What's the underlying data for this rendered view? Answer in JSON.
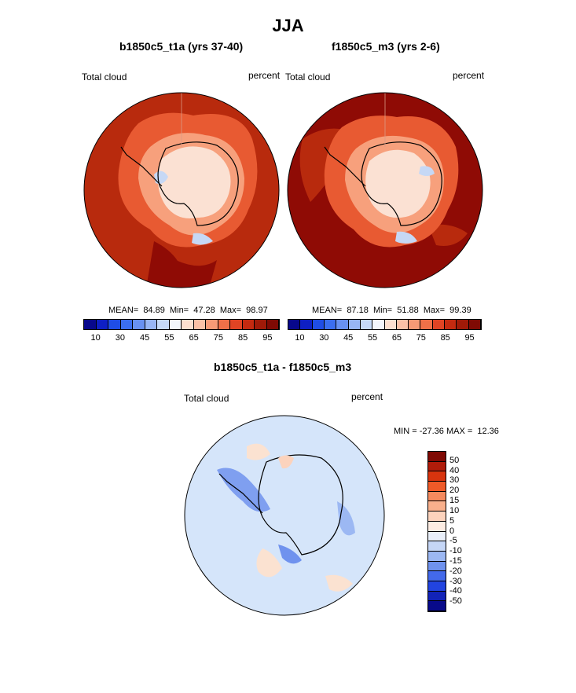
{
  "page": {
    "title": "JJA"
  },
  "panels": [
    {
      "subtitle": "b1850c5_t1a (yrs 37-40)",
      "left_label": "Total cloud",
      "right_label": "percent",
      "stats": "MEAN=  84.89  Min=  47.28  Max=  98.97"
    },
    {
      "subtitle": "f1850c5_m3 (yrs 2-6)",
      "left_label": "Total cloud",
      "right_label": "percent",
      "stats": "MEAN=  87.18  Min=  51.88  Max=  99.39"
    }
  ],
  "colorbar": {
    "colors": [
      "#08088c",
      "#0e1fc4",
      "#1f4de6",
      "#3b6ef0",
      "#6891f2",
      "#98b6f5",
      "#c6daf8",
      "#f3f6fb",
      "#fde0cf",
      "#fbc1a6",
      "#f79a76",
      "#f07048",
      "#e04424",
      "#c42a10",
      "#a01a08",
      "#7f0a04"
    ],
    "tick_labels": [
      "10",
      "30",
      "45",
      "55",
      "65",
      "75",
      "85",
      "95"
    ]
  },
  "diff": {
    "title": "b1850c5_t1a - f1850c5_m3",
    "left_label": "Total cloud",
    "right_label": "percent",
    "stats": "MIN = -27.36 MAX =  12.36",
    "colorbar_colors": [
      "#7f0a04",
      "#b01c0a",
      "#d8340e",
      "#ef5a28",
      "#f58a5e",
      "#f9b08c",
      "#fcd3bd",
      "#fdece2",
      "#e9eff9",
      "#c5d6f6",
      "#9cb8f3",
      "#6f92ee",
      "#4369ea",
      "#2244e0",
      "#1223b8",
      "#080a8a"
    ],
    "colorbar_labels": [
      "50",
      "40",
      "30",
      "20",
      "15",
      "10",
      "5",
      "0",
      "-5",
      "-10",
      "-15",
      "-20",
      "-30",
      "-40",
      "-50"
    ]
  },
  "map_colors": {
    "ocean_high": "#b82a0d",
    "ocean_max": "#8f0b05",
    "ice_edge": "#e85a32",
    "inner": "#f7a07c",
    "interior": "#fbe1d3",
    "low": "#c6d8f5",
    "diff_bg": "#d5e5fa",
    "diff_pos": "#fbe2d1",
    "diff_neg": "#7f9ff0"
  }
}
